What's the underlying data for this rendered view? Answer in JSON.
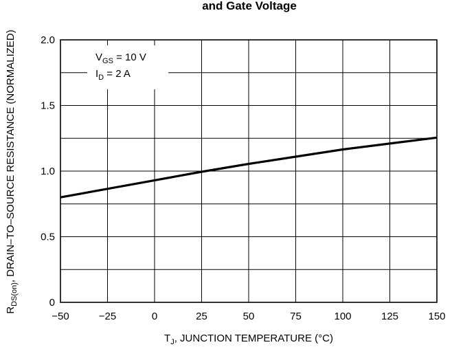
{
  "chart_data": {
    "type": "line",
    "title": "and Gate Voltage",
    "xlabel": {
      "main": "T",
      "sub": "J",
      "rest": ", JUNCTION TEMPERATURE (°C)"
    },
    "ylabel": {
      "main": "R",
      "sub": "DS(on)",
      "rest": ", DRAIN–TO–SOURCE RESISTANCE (NORMALIZED)"
    },
    "xlim": [
      -50,
      150
    ],
    "ylim": [
      0,
      2.0
    ],
    "xticks": [
      -50,
      -25,
      0,
      25,
      50,
      75,
      100,
      125,
      150
    ],
    "yticks": [
      0,
      0.5,
      1.0,
      1.5,
      2.0
    ],
    "xtick_labels": [
      "−50",
      "−25",
      "0",
      "25",
      "50",
      "75",
      "100",
      "125",
      "150"
    ],
    "ytick_labels": [
      "0",
      "0.5",
      "1.0",
      "1.5",
      "2.0"
    ],
    "ygrid_minor": [
      0.25,
      0.75,
      1.25,
      1.75
    ],
    "grid": true,
    "series": [
      {
        "x": [
          -50,
          -25,
          0,
          25,
          50,
          75,
          100,
          125,
          150
        ],
        "y": [
          0.8,
          0.865,
          0.93,
          0.995,
          1.055,
          1.11,
          1.165,
          1.21,
          1.255
        ]
      }
    ],
    "annotations": [
      {
        "main": "V",
        "sub": "GS",
        "rest": " = 10 V"
      },
      {
        "main": "I",
        "sub": "D",
        "rest": " = 2 A"
      }
    ],
    "line_color": "#000000"
  }
}
